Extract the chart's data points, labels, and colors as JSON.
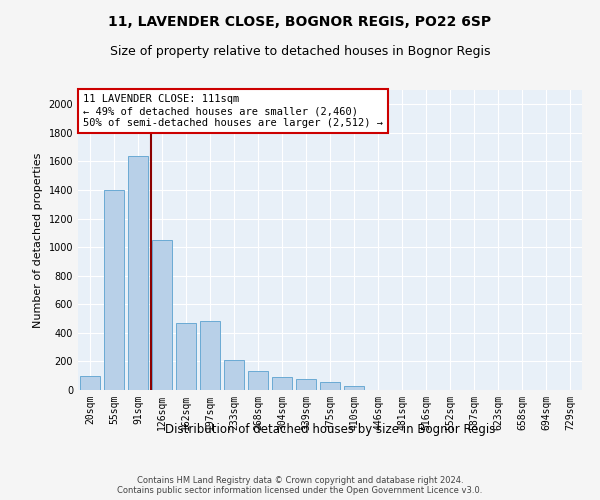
{
  "title1": "11, LAVENDER CLOSE, BOGNOR REGIS, PO22 6SP",
  "title2": "Size of property relative to detached houses in Bognor Regis",
  "xlabel": "Distribution of detached houses by size in Bognor Regis",
  "ylabel": "Number of detached properties",
  "categories": [
    "20sqm",
    "55sqm",
    "91sqm",
    "126sqm",
    "162sqm",
    "197sqm",
    "233sqm",
    "268sqm",
    "304sqm",
    "339sqm",
    "375sqm",
    "410sqm",
    "446sqm",
    "481sqm",
    "516sqm",
    "552sqm",
    "587sqm",
    "623sqm",
    "658sqm",
    "694sqm",
    "729sqm"
  ],
  "values": [
    100,
    1400,
    1640,
    1050,
    470,
    480,
    210,
    130,
    90,
    75,
    55,
    25,
    0,
    0,
    0,
    0,
    0,
    0,
    0,
    0,
    0
  ],
  "bar_color": "#b8d0e8",
  "bar_edge_color": "#6aaad4",
  "red_line_x": 2.55,
  "annotation_text": "11 LAVENDER CLOSE: 111sqm\n← 49% of detached houses are smaller (2,460)\n50% of semi-detached houses are larger (2,512) →",
  "annotation_box_color": "#ffffff",
  "annotation_box_edge": "#cc0000",
  "footnote": "Contains HM Land Registry data © Crown copyright and database right 2024.\nContains public sector information licensed under the Open Government Licence v3.0.",
  "ylim": [
    0,
    2100
  ],
  "yticks": [
    0,
    200,
    400,
    600,
    800,
    1000,
    1200,
    1400,
    1600,
    1800,
    2000
  ],
  "plot_bg_color": "#e8f0f8",
  "grid_color": "#ffffff",
  "fig_bg_color": "#f5f5f5",
  "title1_fontsize": 10,
  "title2_fontsize": 9,
  "annotation_fontsize": 7.5,
  "ylabel_fontsize": 8,
  "xlabel_fontsize": 8.5,
  "footnote_fontsize": 6,
  "tick_fontsize": 7
}
